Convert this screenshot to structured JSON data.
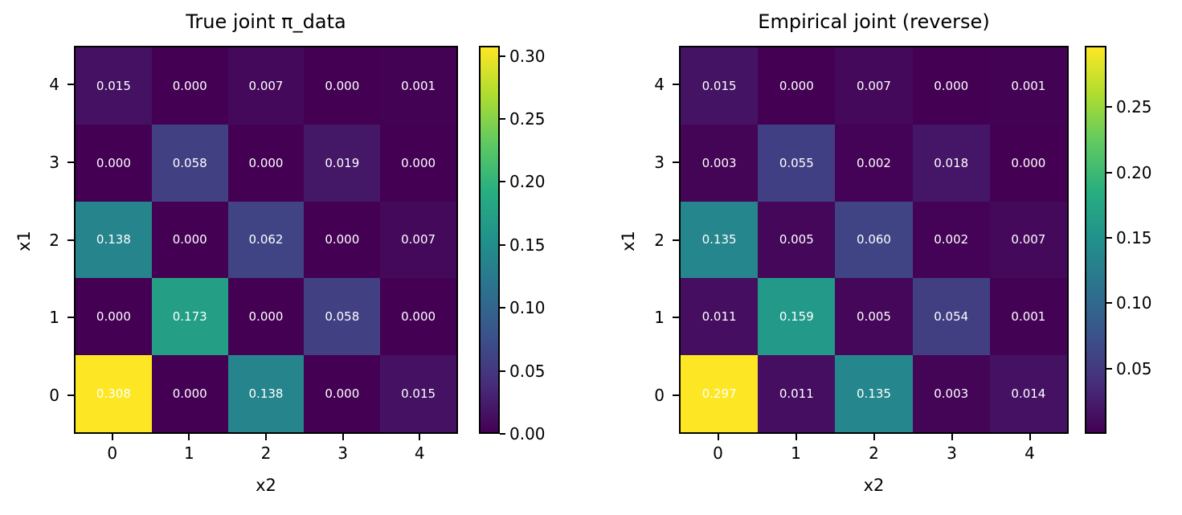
{
  "colors": {
    "background": "#ffffff",
    "cell_text": "#ffffff",
    "axis_text": "#000000",
    "spine": "#000000",
    "viridis_stops": [
      "#440154",
      "#472d7b",
      "#3b528b",
      "#2c728e",
      "#21918c",
      "#28ae80",
      "#5ec962",
      "#addc30",
      "#fde725"
    ]
  },
  "chart_data": [
    {
      "type": "heatmap",
      "title": "True joint π_data",
      "xlabel": "x2",
      "ylabel": "x1",
      "colormap": "viridis",
      "x_tick_labels": [
        "0",
        "1",
        "2",
        "3",
        "4"
      ],
      "y_tick_labels": [
        "4",
        "3",
        "2",
        "1",
        "0"
      ],
      "rows_top_to_bottom": [
        [
          0.015,
          0.0,
          0.007,
          0.0,
          0.001
        ],
        [
          0.0,
          0.058,
          0.0,
          0.019,
          0.0
        ],
        [
          0.138,
          0.0,
          0.062,
          0.0,
          0.007
        ],
        [
          0.0,
          0.173,
          0.0,
          0.058,
          0.0
        ],
        [
          0.308,
          0.0,
          0.138,
          0.0,
          0.015
        ]
      ],
      "value_decimals": 3,
      "vmin": 0.0,
      "vmax": 0.308,
      "colorbar_tick_labels": [
        "0.00",
        "0.05",
        "0.10",
        "0.15",
        "0.20",
        "0.25",
        "0.30"
      ]
    },
    {
      "type": "heatmap",
      "title": "Empirical joint (reverse)",
      "xlabel": "x2",
      "ylabel": "x1",
      "colormap": "viridis",
      "x_tick_labels": [
        "0",
        "1",
        "2",
        "3",
        "4"
      ],
      "y_tick_labels": [
        "4",
        "3",
        "2",
        "1",
        "0"
      ],
      "rows_top_to_bottom": [
        [
          0.015,
          0.0,
          0.007,
          0.0,
          0.001
        ],
        [
          0.003,
          0.055,
          0.002,
          0.018,
          0.0
        ],
        [
          0.135,
          0.005,
          0.06,
          0.002,
          0.007
        ],
        [
          0.011,
          0.159,
          0.005,
          0.054,
          0.001
        ],
        [
          0.297,
          0.011,
          0.135,
          0.003,
          0.014
        ]
      ],
      "value_decimals": 3,
      "vmin": 0.0,
      "vmax": 0.297,
      "colorbar_tick_labels": [
        "0.05",
        "0.10",
        "0.15",
        "0.20",
        "0.25"
      ]
    }
  ]
}
